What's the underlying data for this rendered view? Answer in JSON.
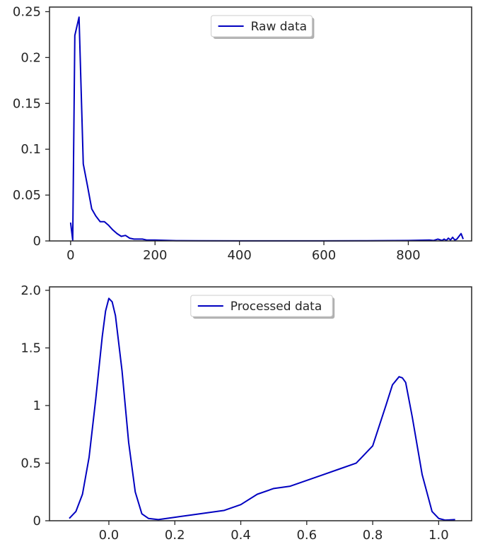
{
  "chart_data": [
    {
      "type": "line",
      "title": "",
      "xlabel": "",
      "ylabel": "",
      "xlim": [
        -50,
        950
      ],
      "ylim": [
        0,
        0.255
      ],
      "x_ticks": [
        0,
        200,
        400,
        600,
        800
      ],
      "x_tick_labels": [
        "0",
        "200",
        "400",
        "600",
        "800"
      ],
      "y_ticks": [
        0,
        0.05,
        0.1,
        0.15,
        0.2,
        0.25
      ],
      "y_tick_labels": [
        "0",
        "0.05",
        "0.1",
        "0.15",
        "0.2",
        "0.25"
      ],
      "grid": false,
      "legend": {
        "position": "upper center",
        "entries": [
          "Raw data"
        ]
      },
      "series": [
        {
          "name": "Raw data",
          "color": "#0000c0",
          "x": [
            0,
            5,
            10,
            20,
            30,
            40,
            50,
            60,
            70,
            80,
            90,
            100,
            110,
            120,
            130,
            140,
            150,
            160,
            170,
            180,
            200,
            250,
            300,
            400,
            500,
            600,
            700,
            800,
            850,
            860,
            870,
            880,
            885,
            890,
            895,
            900,
            905,
            910,
            915,
            920,
            925,
            930
          ],
          "y": [
            0.02,
            0.001,
            0.224,
            0.244,
            0.084,
            0.06,
            0.035,
            0.027,
            0.021,
            0.021,
            0.017,
            0.012,
            0.008,
            0.005,
            0.006,
            0.003,
            0.002,
            0.002,
            0.002,
            0.001,
            0.001,
            0.0003,
            0.0002,
            0.0001,
            0.0001,
            0.0001,
            0.0002,
            0.0005,
            0.001,
            0.0005,
            0.002,
            0.0005,
            0.002,
            0.0005,
            0.003,
            0.001,
            0.004,
            0.001,
            0.002,
            0.005,
            0.008,
            0.002
          ]
        }
      ]
    },
    {
      "type": "line",
      "title": "",
      "xlabel": "",
      "ylabel": "",
      "xlim": [
        -0.18,
        1.1
      ],
      "ylim": [
        0,
        2.03
      ],
      "x_ticks": [
        0,
        0.2,
        0.4,
        0.6,
        0.8,
        1.0
      ],
      "x_tick_labels": [
        "0.0",
        "0.2",
        "0.4",
        "0.6",
        "0.8",
        "1.0"
      ],
      "y_ticks": [
        0,
        0.5,
        1,
        1.5,
        2
      ],
      "y_tick_labels": [
        "0",
        "0.5",
        "1",
        "1.5",
        "2.0"
      ],
      "grid": false,
      "legend": {
        "position": "upper center",
        "entries": [
          "Processed data"
        ]
      },
      "series": [
        {
          "name": "Processed data",
          "color": "#0000c0",
          "x": [
            -0.12,
            -0.1,
            -0.08,
            -0.06,
            -0.04,
            -0.02,
            -0.01,
            0,
            0.01,
            0.02,
            0.04,
            0.06,
            0.08,
            0.1,
            0.12,
            0.15,
            0.2,
            0.25,
            0.3,
            0.35,
            0.4,
            0.45,
            0.5,
            0.55,
            0.6,
            0.65,
            0.7,
            0.75,
            0.8,
            0.84,
            0.86,
            0.88,
            0.89,
            0.9,
            0.92,
            0.95,
            0.98,
            1.0,
            1.02,
            1.05
          ],
          "y": [
            0.02,
            0.08,
            0.23,
            0.55,
            1.05,
            1.6,
            1.82,
            1.93,
            1.9,
            1.78,
            1.3,
            0.68,
            0.25,
            0.06,
            0.02,
            0.01,
            0.03,
            0.05,
            0.07,
            0.09,
            0.14,
            0.23,
            0.28,
            0.3,
            0.35,
            0.4,
            0.45,
            0.5,
            0.65,
            1.0,
            1.18,
            1.25,
            1.24,
            1.2,
            0.9,
            0.4,
            0.08,
            0.02,
            0.005,
            0.01
          ]
        }
      ]
    }
  ]
}
